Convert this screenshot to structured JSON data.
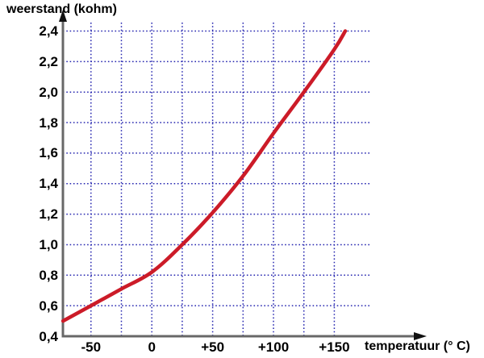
{
  "page": {
    "background": "#ffffff",
    "y_axis_title": "weerstand (kohm)",
    "x_axis_title": "temperatuur (° C)"
  },
  "chart_data": {
    "type": "line",
    "title": "",
    "xlabel": "temperatuur (° C)",
    "ylabel": "weerstand (kohm)",
    "xlim": [
      -73,
      160
    ],
    "ylim": [
      0.4,
      2.4
    ],
    "grid": true,
    "grid_style": "dotted",
    "grid_color": "#2626b0",
    "axis_color": "#686868",
    "arrow_color": "#111111",
    "x_grid_step": 25,
    "y_grid_step": 0.2,
    "x_gridlines": [
      -50,
      -25,
      0,
      25,
      50,
      75,
      100,
      125,
      150
    ],
    "y_gridlines": [
      0.6,
      0.8,
      1.0,
      1.2,
      1.4,
      1.6,
      1.8,
      2.0,
      2.2,
      2.4
    ],
    "x_ticks": [
      {
        "label": "-50",
        "value": -50
      },
      {
        "label": "0",
        "value": 0
      },
      {
        "label": "+50",
        "value": 50
      },
      {
        "label": "+100",
        "value": 100
      },
      {
        "label": "+150",
        "value": 150
      }
    ],
    "y_ticks": [
      {
        "label": "2,4",
        "value": 2.4
      },
      {
        "label": "2,2",
        "value": 2.2
      },
      {
        "label": "2,0",
        "value": 2.0
      },
      {
        "label": "1,8",
        "value": 1.8
      },
      {
        "label": "1,6",
        "value": 1.6
      },
      {
        "label": "1,4",
        "value": 1.4
      },
      {
        "label": "1,2",
        "value": 1.2
      },
      {
        "label": "1,0",
        "value": 1.0
      },
      {
        "label": "0,8",
        "value": 0.8
      },
      {
        "label": "0,6",
        "value": 0.6
      },
      {
        "label": "0,4",
        "value": 0.4
      }
    ],
    "series": [
      {
        "name": "weerstand",
        "color": "#cc1b28",
        "points": [
          {
            "t": -73,
            "r": 0.5
          },
          {
            "t": -50,
            "r": 0.6
          },
          {
            "t": -25,
            "r": 0.71
          },
          {
            "t": 0,
            "r": 0.82
          },
          {
            "t": 25,
            "r": 1.0
          },
          {
            "t": 50,
            "r": 1.21
          },
          {
            "t": 75,
            "r": 1.45
          },
          {
            "t": 100,
            "r": 1.73
          },
          {
            "t": 125,
            "r": 2.0
          },
          {
            "t": 150,
            "r": 2.28
          },
          {
            "t": 159,
            "r": 2.4
          }
        ]
      }
    ]
  }
}
